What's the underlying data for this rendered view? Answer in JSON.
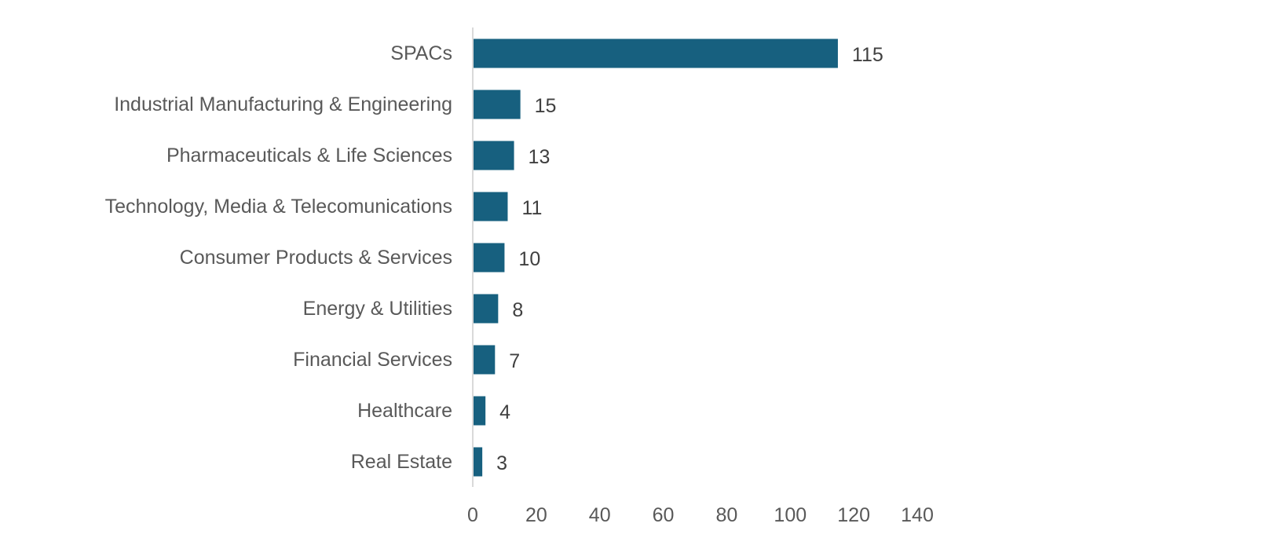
{
  "chart_data": {
    "type": "bar",
    "orientation": "horizontal",
    "categories": [
      "SPACs",
      "Industrial Manufacturing & Engineering",
      "Pharmaceuticals & Life Sciences",
      "Technology, Media & Telecomunications",
      "Consumer Products & Services",
      "Energy & Utilities",
      "Financial Services",
      "Healthcare",
      "Real Estate"
    ],
    "values": [
      115,
      15,
      13,
      11,
      10,
      8,
      7,
      4,
      3
    ],
    "data_labels": [
      "115",
      "15",
      "13",
      "11",
      "10",
      "8",
      "7",
      "4",
      "3"
    ],
    "xlim": [
      0,
      140
    ],
    "ticks": [
      0,
      20,
      40,
      60,
      80,
      100,
      120,
      140
    ],
    "tick_labels": [
      "0",
      "20",
      "40",
      "60",
      "80",
      "100",
      "120",
      "140"
    ],
    "title": "",
    "xlabel": "",
    "ylabel": "",
    "grid": false,
    "legend": "none",
    "bar_color": "#17607f",
    "axis_color": "#d9d9d9"
  }
}
